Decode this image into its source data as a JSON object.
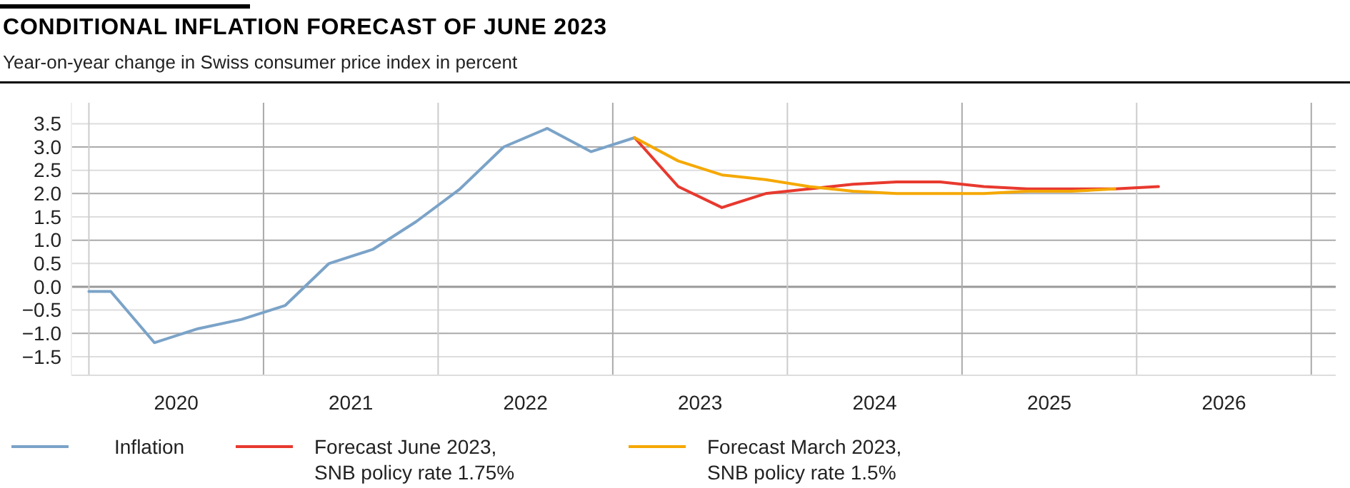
{
  "chart_data": {
    "type": "line",
    "title": "CONDITIONAL INFLATION FORECAST OF JUNE 2023",
    "subtitle": "Year-on-year change in Swiss consumer price index in percent",
    "xlim": [
      2019.9,
      2027.14
    ],
    "xticks": [
      {
        "value": 2020,
        "label": null
      },
      {
        "value": 2020.5,
        "label": "2020"
      },
      {
        "value": 2021,
        "label": null
      },
      {
        "value": 2021.5,
        "label": "2021"
      },
      {
        "value": 2022,
        "label": null
      },
      {
        "value": 2022.5,
        "label": "2022"
      },
      {
        "value": 2023,
        "label": null
      },
      {
        "value": 2023.5,
        "label": "2023"
      },
      {
        "value": 2024,
        "label": null
      },
      {
        "value": 2024.5,
        "label": "2024"
      },
      {
        "value": 2025,
        "label": null
      },
      {
        "value": 2025.5,
        "label": "2025"
      },
      {
        "value": 2026,
        "label": null
      },
      {
        "value": 2026.5,
        "label": "2026"
      },
      {
        "value": 2027,
        "label": null
      }
    ],
    "ylim": [
      -1.9,
      3.95
    ],
    "yticks": [
      {
        "value": -1.5,
        "label": "−1.5"
      },
      {
        "value": -1,
        "label": "−1.0"
      },
      {
        "value": -0.5,
        "label": "−0.5"
      },
      {
        "value": 0,
        "label": "0.0"
      },
      {
        "value": 0.5,
        "label": "0.5"
      },
      {
        "value": 1,
        "label": "1.0"
      },
      {
        "value": 1.5,
        "label": "1.5"
      },
      {
        "value": 2,
        "label": "2.0"
      },
      {
        "value": 2.5,
        "label": "2.5"
      },
      {
        "value": 3,
        "label": "3.0"
      },
      {
        "value": 3.5,
        "label": "3.5"
      }
    ],
    "grid": true,
    "legend": "bottom",
    "series": [
      {
        "name": "Inflation",
        "color": "#7ba3c8",
        "x": [
          2020,
          2020.125,
          2020.375,
          2020.625,
          2020.875,
          2021.125,
          2021.375,
          2021.625,
          2021.875,
          2022.125,
          2022.375,
          2022.625,
          2022.875,
          2023.125
        ],
        "values": [
          -0.1,
          -0.1,
          -1.2,
          -0.9,
          -0.7,
          -0.4,
          0.5,
          0.8,
          1.4,
          2.1,
          3.0,
          3.4,
          2.9,
          3.2
        ]
      },
      {
        "name": "Forecast June 2023, SNB policy rate 1.75%",
        "color": "#e8392e",
        "x": [
          2023.125,
          2023.375,
          2023.625,
          2023.875,
          2024.125,
          2024.375,
          2024.625,
          2024.875,
          2025.125,
          2025.375,
          2025.625,
          2025.875,
          2026.125
        ],
        "values": [
          3.2,
          2.15,
          1.7,
          2.0,
          2.1,
          2.2,
          2.25,
          2.25,
          2.15,
          2.1,
          2.1,
          2.1,
          2.15
        ]
      },
      {
        "name": "Forecast March 2023, SNB policy rate 1.5%",
        "color": "#f5a800",
        "x": [
          2023.125,
          2023.375,
          2023.625,
          2023.875,
          2024.125,
          2024.375,
          2024.625,
          2024.875,
          2025.125,
          2025.375,
          2025.625,
          2025.875
        ],
        "values": [
          3.2,
          2.7,
          2.4,
          2.3,
          2.15,
          2.05,
          2.0,
          2.0,
          2.0,
          2.05,
          2.05,
          2.1
        ]
      }
    ]
  }
}
